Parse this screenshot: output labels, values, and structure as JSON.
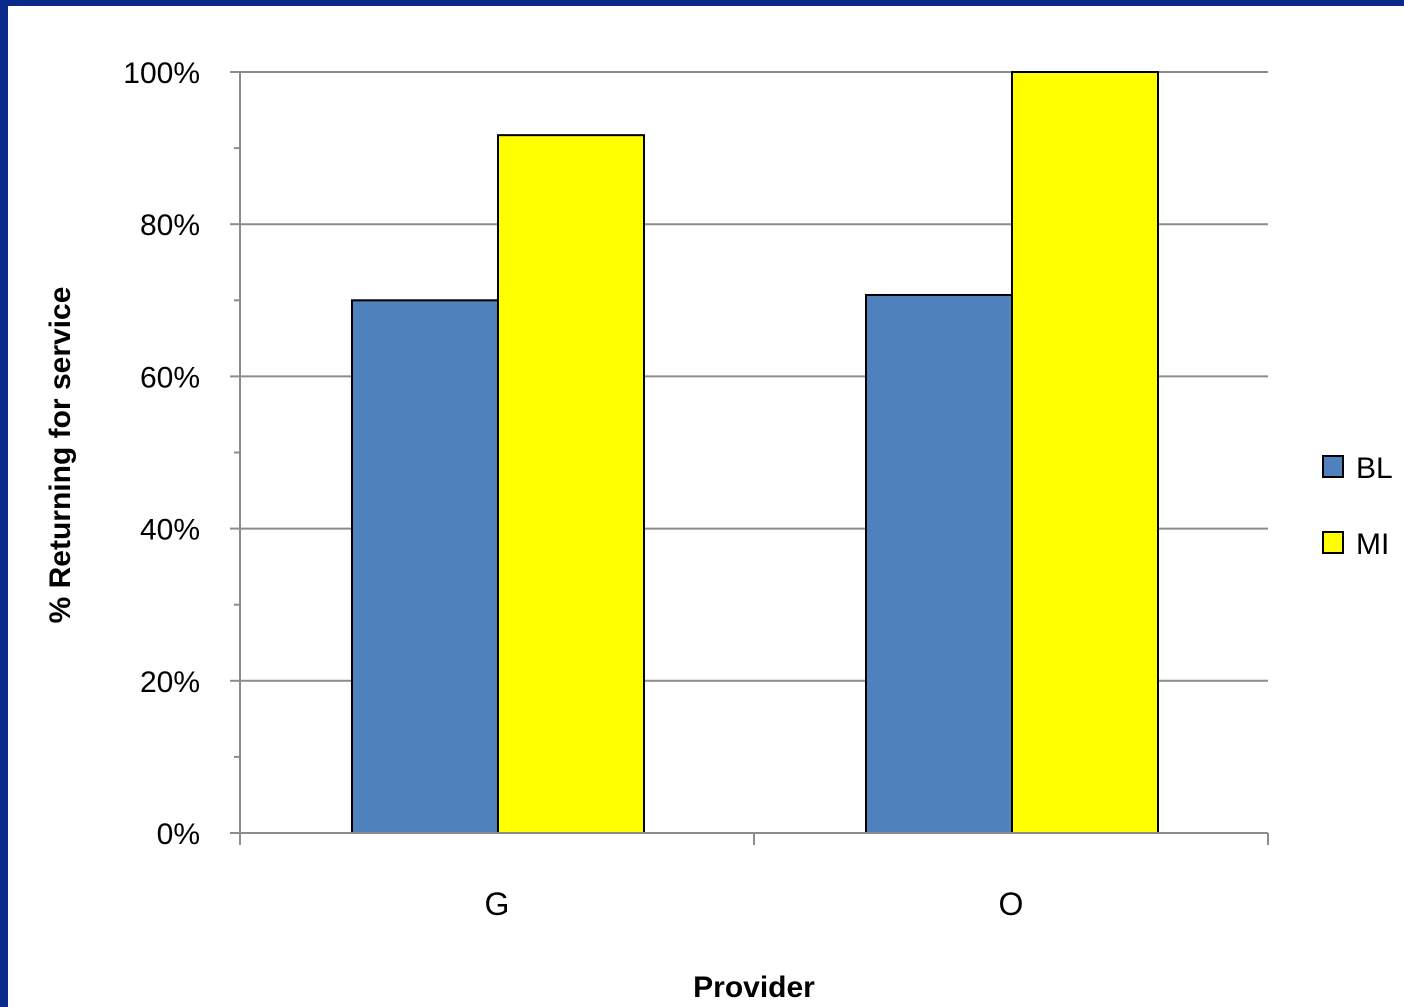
{
  "chart_data": {
    "type": "bar",
    "xlabel": "Provider",
    "ylabel": "% Returning for service",
    "categories": [
      "G",
      "O"
    ],
    "series": [
      {
        "name": "BL",
        "values": [
          70,
          70.7
        ],
        "color": "#4f81bd"
      },
      {
        "name": "MI",
        "values": [
          91.7,
          100
        ],
        "color": "#ffff00"
      }
    ],
    "ylim": [
      0,
      100
    ],
    "yticks": [
      "0%",
      "20%",
      "40%",
      "60%",
      "80%",
      "100%"
    ],
    "grid": true,
    "legend": "right"
  }
}
